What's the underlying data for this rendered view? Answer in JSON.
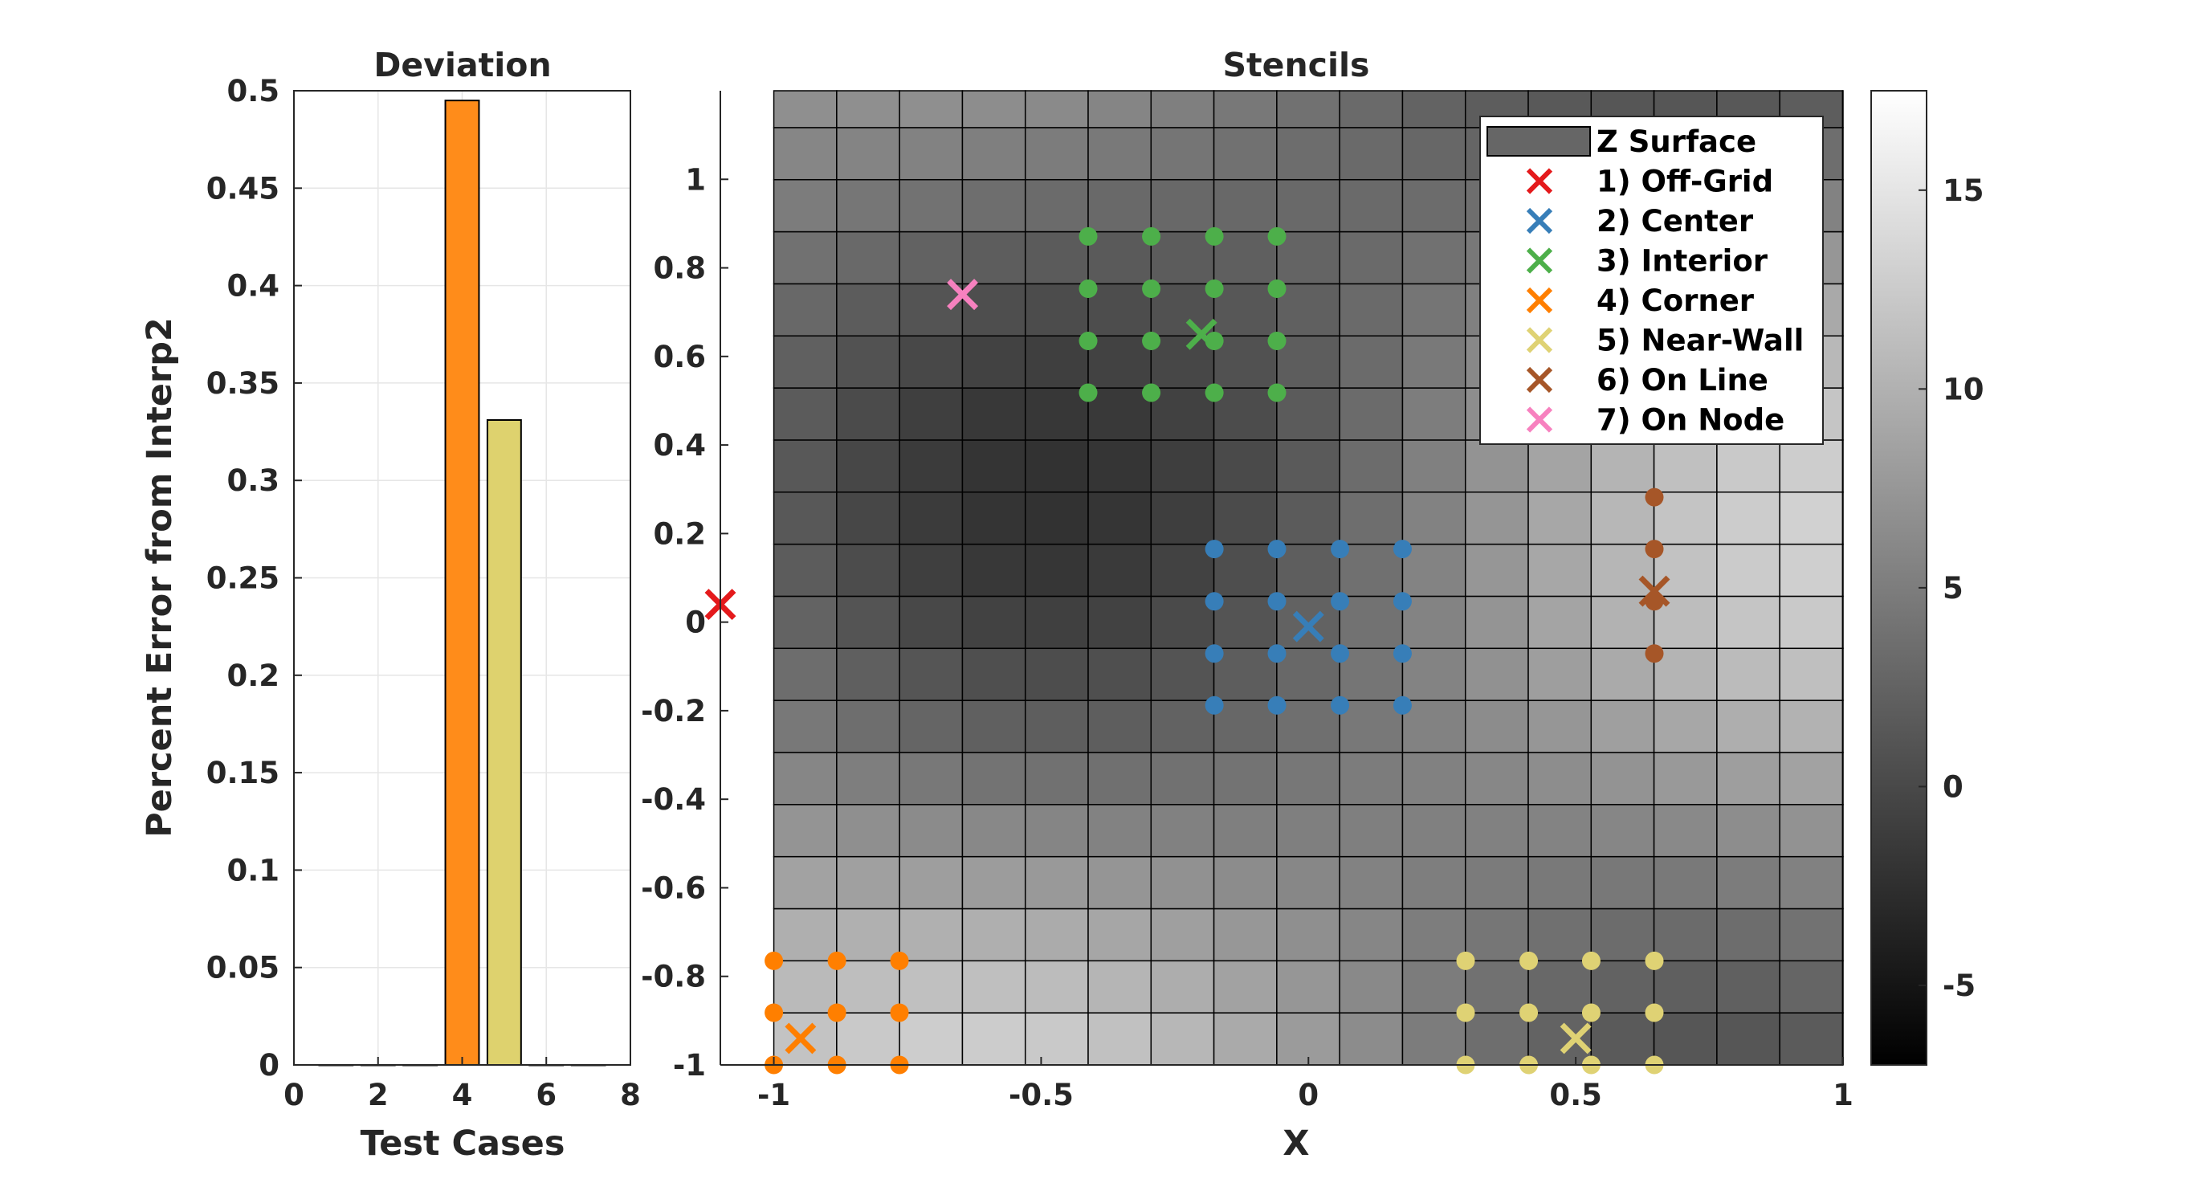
{
  "chart_data": [
    {
      "type": "bar",
      "title": "Deviation",
      "xlabel": "Test Cases",
      "ylabel": "Percent Error from Interp2",
      "xlim": [
        0,
        8
      ],
      "ylim": [
        0,
        0.5
      ],
      "xticks": [
        "0",
        "2",
        "4",
        "6",
        "8"
      ],
      "yticks": [
        "0",
        "0.05",
        "0.1",
        "0.15",
        "0.2",
        "0.25",
        "0.3",
        "0.35",
        "0.4",
        "0.45",
        "0.5"
      ],
      "grid": true,
      "bars": [
        {
          "x": 1,
          "value": 0,
          "color": "#e41a1c"
        },
        {
          "x": 2,
          "value": 0,
          "color": "#377eb8"
        },
        {
          "x": 3,
          "value": 0,
          "color": "#4daf4a"
        },
        {
          "x": 4,
          "value": 0.495,
          "color": "#ff8c1a"
        },
        {
          "x": 5,
          "value": 0.331,
          "color": "#ded26e"
        },
        {
          "x": 6,
          "value": 0,
          "color": "#a65628"
        },
        {
          "x": 7,
          "value": 0,
          "color": "#f781bf"
        }
      ]
    },
    {
      "type": "heatmap",
      "title": "Stencils",
      "xlabel": "X",
      "ylabel": "",
      "xlim": [
        -1.1,
        1
      ],
      "ylim": [
        -1,
        1.2
      ],
      "xticks": [
        "-1",
        "-0.5",
        "0",
        "0.5",
        "1"
      ],
      "yticks": [
        "-1",
        "-0.8",
        "-0.6",
        "-0.4",
        "-0.2",
        "0",
        "0.2",
        "0.4",
        "0.6",
        "0.8",
        "1"
      ],
      "grid_spacing": 0.1176,
      "colorbar": {
        "range": [
          -7,
          17.5
        ],
        "ticks": [
          "-5",
          "0",
          "5",
          "10",
          "15"
        ],
        "colormap": "gray"
      },
      "legend": {
        "position": "top-right",
        "entries": [
          {
            "label": "Z Surface",
            "kind": "patch",
            "color": "#666666"
          },
          {
            "label": "1) Off-Grid",
            "kind": "x",
            "color": "#e41a1c"
          },
          {
            "label": "2) Center",
            "kind": "x",
            "color": "#377eb8"
          },
          {
            "label": "3) Interior",
            "kind": "x",
            "color": "#4daf4a"
          },
          {
            "label": "4) Corner",
            "kind": "x",
            "color": "#ff7f00"
          },
          {
            "label": "5) Near-Wall",
            "kind": "x",
            "color": "#dfd274"
          },
          {
            "label": "6) On Line",
            "kind": "x",
            "color": "#a65628"
          },
          {
            "label": "7) On Node",
            "kind": "x",
            "color": "#f781bf"
          }
        ]
      },
      "query_points": [
        {
          "case": "1) Off-Grid",
          "x": -1.1,
          "y": 0.04,
          "color": "#e41a1c"
        },
        {
          "case": "2) Center",
          "x": 0.0,
          "y": -0.01,
          "color": "#377eb8"
        },
        {
          "case": "3) Interior",
          "x": -0.2,
          "y": 0.65,
          "color": "#4daf4a"
        },
        {
          "case": "4) Corner",
          "x": -0.95,
          "y": -0.94,
          "color": "#ff7f00"
        },
        {
          "case": "5) Near-Wall",
          "x": 0.5,
          "y": -0.94,
          "color": "#dfd274"
        },
        {
          "case": "6) On Line",
          "x": 0.647,
          "y": 0.07,
          "color": "#a65628"
        },
        {
          "case": "7) On Node",
          "x": -0.647,
          "y": 0.74,
          "color": "#f781bf"
        }
      ],
      "stencils": [
        {
          "case": "2) Center",
          "color": "#377eb8",
          "xs": [
            -0.176,
            -0.059,
            0.059,
            0.176
          ],
          "ys": [
            -0.188,
            -0.071,
            0.047,
            0.165
          ]
        },
        {
          "case": "3) Interior",
          "color": "#4daf4a",
          "xs": [
            -0.412,
            -0.294,
            -0.176,
            -0.059
          ],
          "ys": [
            0.518,
            0.635,
            0.753,
            0.871
          ]
        },
        {
          "case": "4) Corner",
          "color": "#ff7f00",
          "xs": [
            -1.0,
            -0.882,
            -0.765
          ],
          "ys": [
            -1.0,
            -0.882,
            -0.765
          ]
        },
        {
          "case": "5) Near-Wall",
          "color": "#dfd274",
          "xs": [
            0.294,
            0.412,
            0.529,
            0.647
          ],
          "ys": [
            -1.0,
            -0.882,
            -0.765
          ]
        },
        {
          "case": "6) On Line",
          "color": "#a65628",
          "xs": [
            0.647
          ],
          "ys": [
            -0.071,
            0.047,
            0.165,
            0.282
          ]
        }
      ]
    }
  ]
}
